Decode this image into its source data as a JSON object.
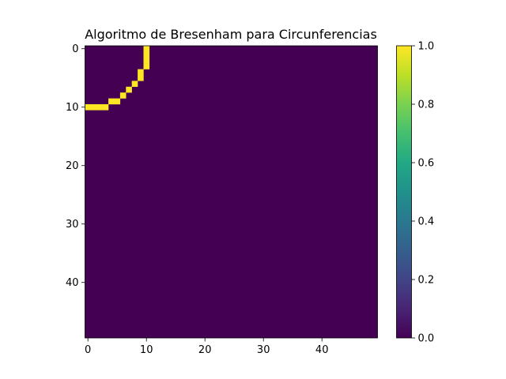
{
  "chart_data": {
    "type": "heatmap",
    "title": "Algoritmo  de Bresenham para Circunferencias",
    "xlabel": "",
    "ylabel": "",
    "grid_size": 50,
    "x_ticks": [
      0,
      10,
      20,
      30,
      40
    ],
    "y_ticks": [
      0,
      10,
      20,
      30,
      40
    ],
    "xlim": [
      -0.5,
      49.5
    ],
    "ylim": [
      49.5,
      -0.5
    ],
    "background_value": 0,
    "nonzero_cells": [
      {
        "row": 0,
        "col": 10,
        "value": 1
      },
      {
        "row": 1,
        "col": 10,
        "value": 1
      },
      {
        "row": 2,
        "col": 10,
        "value": 1
      },
      {
        "row": 3,
        "col": 10,
        "value": 1
      },
      {
        "row": 4,
        "col": 9,
        "value": 1
      },
      {
        "row": 5,
        "col": 9,
        "value": 1
      },
      {
        "row": 6,
        "col": 8,
        "value": 1
      },
      {
        "row": 7,
        "col": 7,
        "value": 1
      },
      {
        "row": 8,
        "col": 6,
        "value": 1
      },
      {
        "row": 9,
        "col": 4,
        "value": 1
      },
      {
        "row": 9,
        "col": 5,
        "value": 1
      },
      {
        "row": 10,
        "col": 0,
        "value": 1
      },
      {
        "row": 10,
        "col": 1,
        "value": 1
      },
      {
        "row": 10,
        "col": 2,
        "value": 1
      },
      {
        "row": 10,
        "col": 3,
        "value": 1
      }
    ],
    "colorbar": {
      "colormap": "viridis",
      "range": [
        0.0,
        1.0
      ],
      "ticks": [
        "0.0",
        "0.2",
        "0.4",
        "0.6",
        "0.8",
        "1.0"
      ],
      "low_color": "#440154",
      "high_color": "#fde725"
    }
  }
}
